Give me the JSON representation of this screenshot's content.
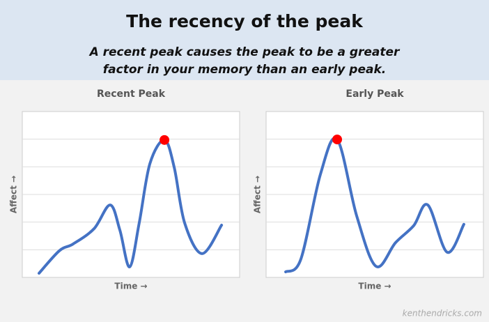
{
  "header": {
    "title": "The recency of the peak",
    "subtitle": [
      "A recent peak causes the peak to be a greater",
      "factor in your memory than an early peak."
    ]
  },
  "chart_data": [
    {
      "type": "line",
      "title": "Recent Peak",
      "x_label": "Time →",
      "y_label": "Affect →",
      "xlim": [
        0,
        10
      ],
      "ylim": [
        0,
        6
      ],
      "yticks": [
        1,
        2,
        3,
        4,
        5
      ],
      "grid": true,
      "series": [
        {
          "color": "#4472c4",
          "x": [
            0.77,
            1.7,
            2.34,
            3.3,
            4.04,
            4.49,
            4.94,
            5.38,
            5.87,
            6.54,
            6.99,
            7.47,
            8.27,
            9.17
          ],
          "values": [
            0.15,
            0.96,
            1.21,
            1.76,
            2.62,
            1.71,
            0.38,
            1.97,
            4.11,
            4.97,
            3.98,
            1.97,
            0.86,
            1.89
          ]
        }
      ],
      "highlight": {
        "x": 6.54,
        "y": 4.97,
        "color": "#ff0000"
      }
    },
    {
      "type": "line",
      "title": "Early Peak",
      "x_label": "Time →",
      "y_label": "Affect →",
      "xlim": [
        0,
        10
      ],
      "ylim": [
        0,
        6
      ],
      "yticks": [
        1,
        2,
        3,
        4,
        5
      ],
      "grid": true,
      "series": [
        {
          "color": "#4472c4",
          "x": [
            0.9,
            1.6,
            2.5,
            3.27,
            4.17,
            5.06,
            5.96,
            6.79,
            7.44,
            8.33,
            9.1
          ],
          "values": [
            0.2,
            0.66,
            3.73,
            4.99,
            2.22,
            0.4,
            1.26,
            1.87,
            2.62,
            0.91,
            1.92
          ]
        }
      ],
      "highlight": {
        "x": 3.27,
        "y": 4.99,
        "color": "#ff0000"
      }
    }
  ],
  "source": "kenthendricks.com"
}
